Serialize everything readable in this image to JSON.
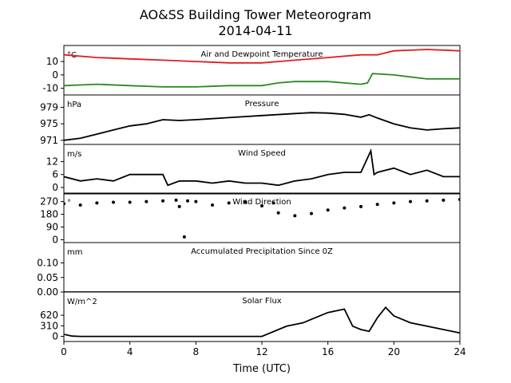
{
  "title_line1": "AO&SS Building Tower Meteorogram",
  "title_line2": "2014-04-11",
  "xlabel": "Time (UTC)",
  "xticks": [
    "0",
    "4",
    "8",
    "12",
    "16",
    "20",
    "24"
  ],
  "colors": {
    "temperature": "#e31a1c",
    "dewpoint": "#2a8a1f",
    "line": "#000000"
  },
  "chart_data": [
    {
      "type": "line",
      "title": "Air and Dewpoint Temperature",
      "unit": "°C",
      "ylim": [
        -15,
        22
      ],
      "yticks": [
        "10",
        "0",
        "-10"
      ],
      "yticks_values": [
        10,
        0,
        -10
      ],
      "series": [
        {
          "key": "temperature",
          "x": [
            0,
            2,
            4,
            6,
            8,
            10,
            12,
            13,
            14,
            16,
            18,
            19,
            20,
            22,
            24
          ],
          "y": [
            15,
            13,
            12,
            11,
            10,
            9,
            9,
            10,
            11,
            13,
            15,
            15,
            18,
            19,
            18
          ]
        },
        {
          "key": "dewpoint",
          "x": [
            0,
            2,
            4,
            6,
            8,
            10,
            12,
            13,
            14,
            16,
            18,
            18.4,
            18.7,
            20,
            22,
            24
          ],
          "y": [
            -8,
            -7,
            -8,
            -9,
            -9,
            -8,
            -8,
            -6,
            -5,
            -5,
            -7,
            -6,
            1,
            0,
            -3,
            -3
          ]
        }
      ]
    },
    {
      "type": "line",
      "title": "Pressure",
      "unit": "hPa",
      "ylim": [
        970,
        982
      ],
      "yticks": [
        "979",
        "975",
        "971"
      ],
      "yticks_values": [
        979,
        975,
        971
      ],
      "series": [
        {
          "key": "line",
          "x": [
            0,
            1,
            2,
            3,
            4,
            5,
            6,
            7,
            8,
            10,
            12,
            14,
            15,
            16,
            17,
            18,
            18.5,
            19,
            20,
            21,
            22,
            23,
            24
          ],
          "y": [
            971,
            971.5,
            972.5,
            973.5,
            974.5,
            975,
            976,
            975.8,
            976,
            976.5,
            977,
            977.5,
            977.7,
            977.6,
            977.3,
            976.6,
            977.2,
            976.4,
            975,
            974,
            973.5,
            973.8,
            974
          ]
        }
      ]
    },
    {
      "type": "line",
      "title": "Wind Speed",
      "unit": "m/s",
      "ylim": [
        -3,
        20
      ],
      "yticks": [
        "12",
        "6",
        "0"
      ],
      "yticks_values": [
        12,
        6,
        0
      ],
      "series": [
        {
          "key": "line",
          "x": [
            0,
            1,
            2,
            3,
            4,
            5,
            6,
            6.3,
            7,
            8,
            9,
            10,
            11,
            12,
            13,
            14,
            15,
            16,
            17,
            18,
            18.6,
            18.8,
            19,
            20,
            21,
            22,
            23,
            24
          ],
          "y": [
            5,
            3,
            4,
            3,
            6,
            6,
            6,
            1,
            3,
            3,
            2,
            3,
            2,
            2,
            1,
            3,
            4,
            6,
            7,
            7,
            17,
            6,
            7,
            9,
            6,
            8,
            5,
            5
          ]
        }
      ]
    },
    {
      "type": "scatter",
      "title": "Wind Direction",
      "unit": "°",
      "ylim": [
        -20,
        330
      ],
      "yticks": [
        "270",
        "180",
        "90",
        "0"
      ],
      "yticks_values": [
        270,
        180,
        90,
        0
      ],
      "series": [
        {
          "key": "line",
          "x": [
            0,
            1,
            2,
            3,
            4,
            5,
            6,
            6.8,
            7,
            7.3,
            7.5,
            8,
            9,
            10,
            11,
            12,
            12.7,
            13,
            14,
            15,
            16,
            17,
            18,
            19,
            20,
            21,
            22,
            23,
            24
          ],
          "y": [
            255,
            245,
            260,
            265,
            265,
            270,
            275,
            280,
            235,
            20,
            275,
            270,
            245,
            260,
            265,
            240,
            260,
            190,
            170,
            185,
            210,
            225,
            235,
            250,
            260,
            270,
            275,
            280,
            285
          ]
        }
      ]
    },
    {
      "type": "line",
      "title": "Accumulated Precipitation Since 0Z",
      "unit": "mm",
      "ylim": [
        0,
        0.17
      ],
      "yticks": [
        "0.10",
        "0.05",
        "0.00"
      ],
      "yticks_values": [
        0.1,
        0.05,
        0.0
      ],
      "series": [
        {
          "key": "line",
          "x": [
            0,
            24
          ],
          "y": [
            0,
            0
          ]
        }
      ]
    },
    {
      "type": "line",
      "title": "Solar Flux",
      "unit": "W/m^2",
      "ylim": [
        -150,
        1300
      ],
      "yticks": [
        "620",
        "310",
        "0"
      ],
      "yticks_values": [
        620,
        310,
        0
      ],
      "series": [
        {
          "key": "line",
          "x": [
            0,
            0.5,
            1,
            12,
            12.5,
            13,
            13.5,
            14,
            14.5,
            15,
            16,
            17,
            17.5,
            18,
            18.5,
            19,
            19.5,
            20,
            20.5,
            21,
            22,
            23,
            24
          ],
          "y": [
            60,
            10,
            0,
            0,
            100,
            200,
            300,
            350,
            400,
            500,
            700,
            800,
            300,
            200,
            150,
            550,
            850,
            600,
            500,
            400,
            300,
            200,
            100
          ]
        }
      ]
    }
  ]
}
